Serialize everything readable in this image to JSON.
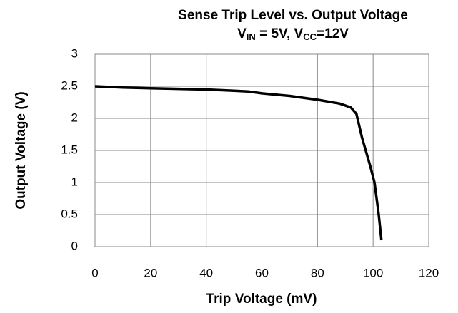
{
  "chart_data": {
    "type": "line",
    "title": "Sense Trip Level vs. Output Voltage",
    "subtitle": [
      {
        "text": "V"
      },
      {
        "text": "IN",
        "sub": true
      },
      {
        "text": " = 5V, V"
      },
      {
        "text": "CC",
        "sub": true
      },
      {
        "text": "=12V"
      }
    ],
    "x_label": "Trip Voltage (mV)",
    "y_label": "Output Voltage (V)",
    "x": [
      0,
      10,
      20,
      30,
      40,
      50,
      55,
      60,
      70,
      80,
      88,
      92,
      94,
      96,
      98,
      99,
      100.5,
      102,
      103
    ],
    "series": [
      {
        "name": "Output Voltage",
        "color": "#000000",
        "values": [
          2.5,
          2.48,
          2.47,
          2.46,
          2.45,
          2.43,
          2.42,
          2.39,
          2.35,
          2.29,
          2.23,
          2.17,
          2.07,
          1.7,
          1.4,
          1.25,
          1.0,
          0.5,
          0.1
        ]
      }
    ],
    "xlim": [
      0,
      120
    ],
    "xticks": [
      0,
      20,
      40,
      60,
      80,
      100,
      120
    ],
    "ylim": [
      0,
      3
    ],
    "yticks": [
      0,
      0.5,
      1,
      1.5,
      2,
      2.5,
      3
    ],
    "grid": true
  }
}
